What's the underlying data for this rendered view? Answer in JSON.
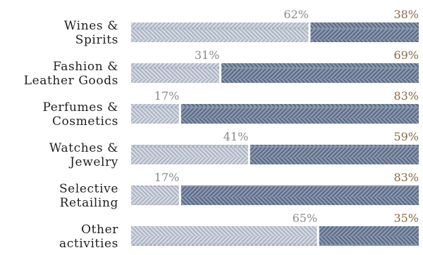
{
  "chart_data": {
    "type": "bar",
    "orientation": "horizontal",
    "stacked": true,
    "percent": true,
    "categories": [
      [
        "Wines &",
        "Spirits"
      ],
      [
        "Fashion &",
        "Leather Goods"
      ],
      [
        "Perfumes &",
        "Cosmetics"
      ],
      [
        "Watches &",
        "Jewelry"
      ],
      [
        "Selective",
        "Retailing"
      ],
      [
        "Other",
        "activities"
      ]
    ],
    "series": [
      {
        "values": [
          62,
          31,
          17,
          41,
          17,
          65
        ],
        "color": "#b8bfcc"
      },
      {
        "values": [
          38,
          69,
          83,
          59,
          83,
          35
        ],
        "color": "#6f7e97"
      }
    ],
    "value_label_colors": [
      "#8a8a8a",
      "#8a6a44"
    ],
    "value_suffix": "%",
    "xlim": [
      0,
      100
    ],
    "grid": false,
    "legend": "none"
  }
}
